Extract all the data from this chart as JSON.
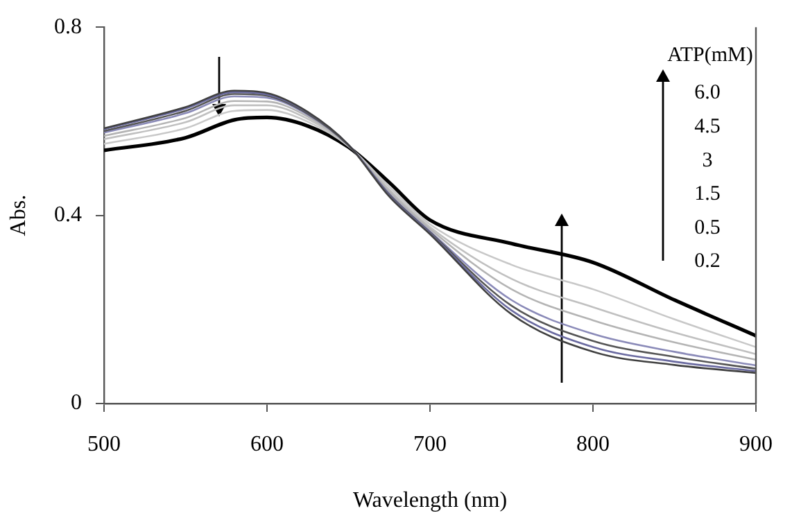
{
  "chart_data": {
    "type": "line",
    "xlabel": "Wavelength (nm)",
    "ylabel": "Abs.",
    "xlim": [
      500,
      900
    ],
    "xticks": [
      500,
      600,
      700,
      800,
      900
    ],
    "ylim": [
      0,
      0.8
    ],
    "yticks": [
      0,
      0.4,
      0.8
    ],
    "grid": false,
    "legend": false,
    "marker": "none",
    "line_style": "solid",
    "x": [
      500,
      550,
      580,
      600,
      625,
      650,
      675,
      700,
      750,
      800,
      850,
      900
    ],
    "series": [
      {
        "color": "#404040",
        "values": [
          0.585,
          0.63,
          0.665,
          0.66,
          0.62,
          0.55,
          0.44,
          0.36,
          0.19,
          0.11,
          0.082,
          0.065
        ]
      },
      {
        "color": "#6a6aa0",
        "values": [
          0.583,
          0.627,
          0.662,
          0.657,
          0.619,
          0.55,
          0.442,
          0.362,
          0.198,
          0.12,
          0.089,
          0.069
        ]
      },
      {
        "color": "#555555",
        "values": [
          0.579,
          0.622,
          0.658,
          0.654,
          0.616,
          0.549,
          0.444,
          0.364,
          0.208,
          0.133,
          0.099,
          0.074
        ]
      },
      {
        "color": "#8a8ab8",
        "values": [
          0.576,
          0.617,
          0.653,
          0.65,
          0.614,
          0.549,
          0.446,
          0.366,
          0.22,
          0.148,
          0.11,
          0.081
        ]
      },
      {
        "color": "#b4b4b4",
        "values": [
          0.569,
          0.607,
          0.643,
          0.642,
          0.61,
          0.548,
          0.451,
          0.371,
          0.243,
          0.177,
          0.13,
          0.093
        ]
      },
      {
        "color": "#c0c0c0",
        "values": [
          0.562,
          0.598,
          0.634,
          0.634,
          0.605,
          0.548,
          0.455,
          0.375,
          0.265,
          0.205,
          0.151,
          0.105
        ]
      },
      {
        "color": "#c8c8c8",
        "values": [
          0.552,
          0.585,
          0.622,
          0.624,
          0.599,
          0.547,
          0.461,
          0.381,
          0.295,
          0.243,
          0.179,
          0.12
        ]
      },
      {
        "color": "#000000",
        "values": [
          0.538,
          0.565,
          0.603,
          0.608,
          0.59,
          0.545,
          0.47,
          0.39,
          0.34,
          0.3,
          0.22,
          0.144
        ]
      }
    ],
    "annotations": [
      "ATP(mM)",
      "6.0",
      "4.5",
      "3",
      "1.5",
      "0.5",
      "0.2"
    ]
  }
}
